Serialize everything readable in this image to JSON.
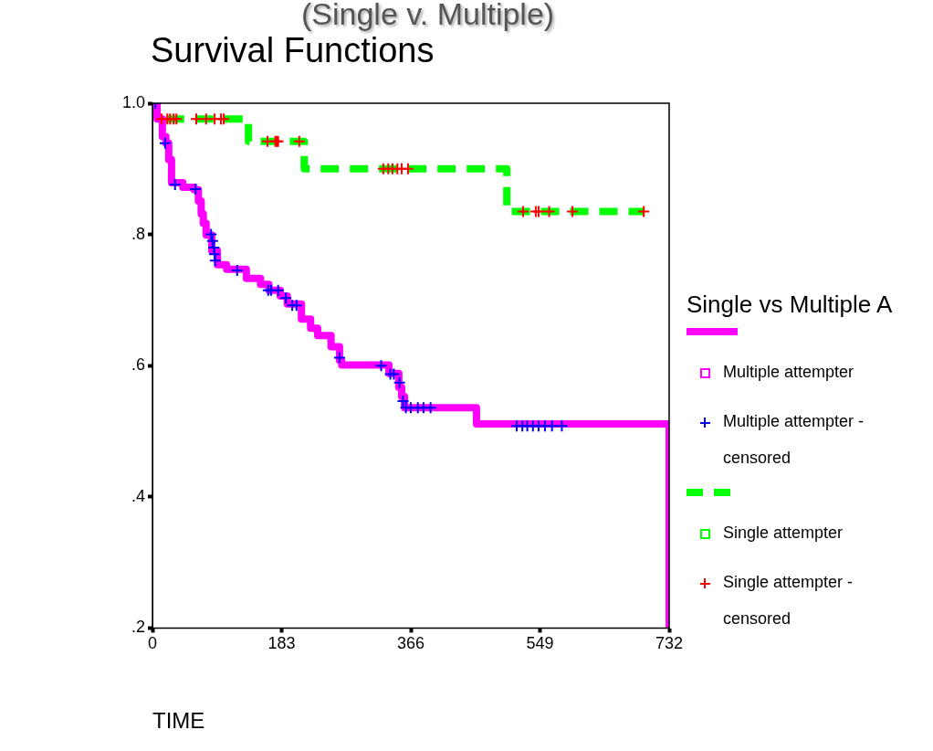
{
  "chart_data": {
    "type": "step",
    "title": "Survival Functions",
    "xlabel": "TIME",
    "legend_title": "Single vs Multiple A",
    "annotations": [
      "(Single v. Multiple)"
    ],
    "xlim": [
      0,
      732
    ],
    "xticks": [
      0,
      183,
      366,
      549,
      732
    ],
    "ylim": [
      0.2,
      1.0
    ],
    "yticks": [
      {
        "value": 0.2,
        "label": ".2"
      },
      {
        "value": 0.4,
        "label": ".4"
      },
      {
        "value": 0.6,
        "label": ".6"
      },
      {
        "value": 0.8,
        "label": ".8"
      },
      {
        "value": 1.0,
        "label": "1.0"
      }
    ],
    "grid": false,
    "legend": "right",
    "series": [
      {
        "name": "Multiple attempter",
        "type": "step",
        "color": "#ff00ff",
        "line_style": "solid",
        "x": [
          0,
          6.5,
          14,
          19,
          23,
          27,
          43,
          59,
          65,
          69,
          72,
          76,
          84,
          92,
          105,
          133,
          153,
          165,
          181,
          191,
          211,
          224,
          234,
          253,
          265,
          268,
          335,
          349,
          353,
          357,
          459,
          732
        ],
        "values": [
          1.0,
          0.976,
          0.949,
          0.939,
          0.914,
          0.879,
          0.872,
          0.868,
          0.851,
          0.831,
          0.817,
          0.799,
          0.775,
          0.754,
          0.747,
          0.733,
          0.724,
          0.715,
          0.706,
          0.694,
          0.671,
          0.657,
          0.646,
          0.629,
          0.608,
          0.601,
          0.588,
          0.567,
          0.553,
          0.536,
          0.511,
          0.2
        ]
      },
      {
        "name": "Multiple attempter -censored",
        "type": "scatter",
        "marker": "cross",
        "color": "#0000ff",
        "x": [
          4,
          18,
          32,
          61,
          83,
          85,
          87,
          88,
          89,
          120,
          164,
          168,
          178,
          189,
          198,
          204,
          265,
          324,
          337,
          342,
          350,
          355,
          359,
          366,
          376,
          384,
          394,
          516,
          524,
          531,
          539,
          547,
          556,
          566,
          580
        ],
        "values": [
          1.0,
          0.939,
          0.876,
          0.869,
          0.8,
          0.79,
          0.78,
          0.77,
          0.76,
          0.745,
          0.715,
          0.715,
          0.715,
          0.703,
          0.692,
          0.692,
          0.612,
          0.6,
          0.587,
          0.587,
          0.574,
          0.546,
          0.536,
          0.536,
          0.536,
          0.536,
          0.536,
          0.508,
          0.508,
          0.508,
          0.508,
          0.508,
          0.508,
          0.508,
          0.508
        ]
      },
      {
        "name": "Single attempter",
        "type": "step",
        "color": "#00ff00",
        "line_style": "dashed",
        "x": [
          0,
          6.5,
          136,
          215,
          502,
          697
        ],
        "values": [
          1.0,
          0.976,
          0.942,
          0.9,
          0.835,
          0.835
        ]
      },
      {
        "name": "Single attempter -censored",
        "type": "scatter",
        "marker": "cross",
        "color": "#ff0000",
        "x": [
          13,
          21,
          25,
          30,
          34,
          62,
          76,
          88,
          97,
          101,
          163,
          174,
          176,
          178,
          208,
          327,
          334,
          340,
          347,
          353,
          362,
          525,
          543,
          547,
          562,
          595,
          696
        ],
        "values": [
          0.976,
          0.976,
          0.976,
          0.976,
          0.976,
          0.976,
          0.976,
          0.976,
          0.976,
          0.976,
          0.942,
          0.942,
          0.942,
          0.942,
          0.942,
          0.9,
          0.9,
          0.9,
          0.9,
          0.9,
          0.9,
          0.835,
          0.835,
          0.835,
          0.835,
          0.835,
          0.835
        ]
      }
    ]
  }
}
